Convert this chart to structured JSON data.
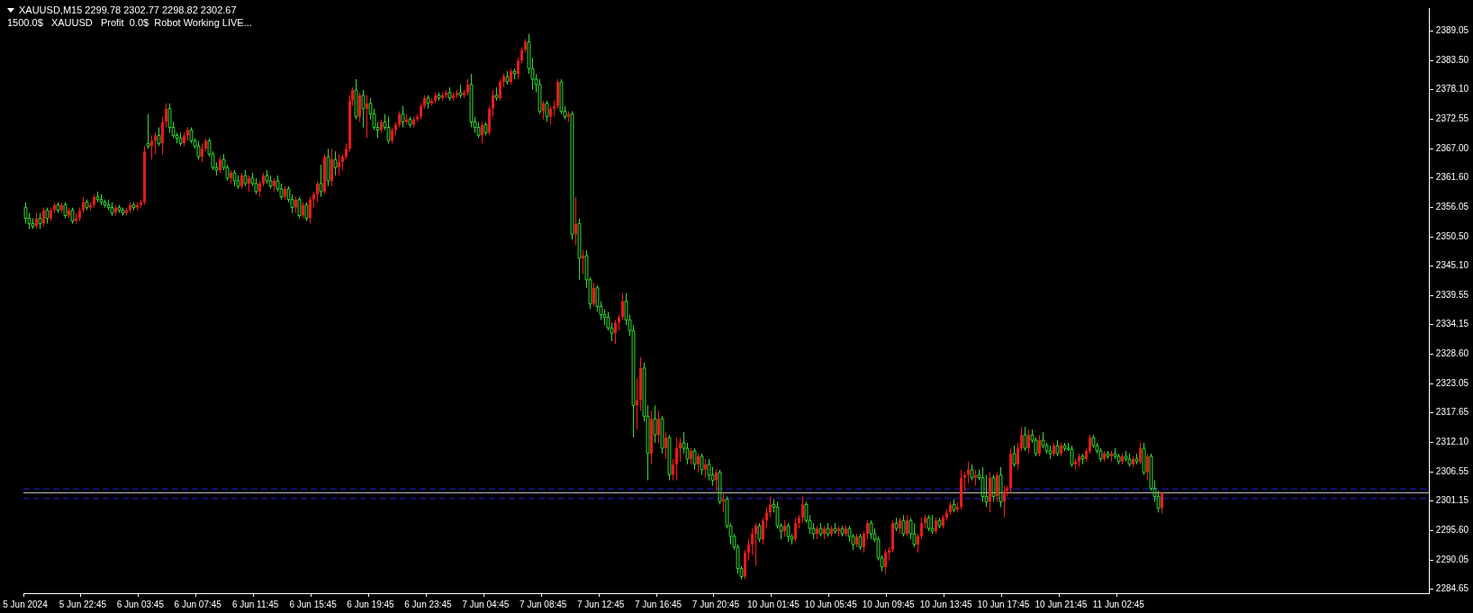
{
  "chart_data": {
    "type": "candlestick",
    "title": "XAUUSD,M15 2299.78 2302.77 2298.82 2302.67",
    "subtitle": "1500.0$   XAUUSD   Profit  0.0$  Robot Working LIVE...",
    "categories": [
      "5 Jun 2024",
      null,
      null,
      null,
      null,
      null,
      null,
      null,
      null,
      null,
      null,
      null,
      null,
      null,
      null,
      null,
      "5 Jun 22:45",
      null,
      null,
      null,
      null,
      null,
      null,
      null,
      null,
      null,
      null,
      null,
      null,
      null,
      null,
      null,
      "6 Jun 03:45",
      null,
      null,
      null,
      null,
      null,
      null,
      null,
      null,
      null,
      null,
      null,
      null,
      null,
      null,
      null,
      "6 Jun 07:45",
      null,
      null,
      null,
      null,
      null,
      null,
      null,
      null,
      null,
      null,
      null,
      null,
      null,
      null,
      null,
      "6 Jun 11:45",
      null,
      null,
      null,
      null,
      null,
      null,
      null,
      null,
      null,
      null,
      null,
      null,
      null,
      null,
      null,
      "6 Jun 15:45",
      null,
      null,
      null,
      null,
      null,
      null,
      null,
      null,
      null,
      null,
      null,
      null,
      null,
      null,
      null,
      "6 Jun 19:45",
      null,
      null,
      null,
      null,
      null,
      null,
      null,
      null,
      null,
      null,
      null,
      null,
      null,
      null,
      null,
      "6 Jun 23:45",
      null,
      null,
      null,
      null,
      null,
      null,
      null,
      null,
      null,
      null,
      null,
      null,
      null,
      null,
      null,
      "7 Jun 04:45",
      null,
      null,
      null,
      null,
      null,
      null,
      null,
      null,
      null,
      null,
      null,
      null,
      null,
      null,
      null,
      "7 Jun 08:45",
      null,
      null,
      null,
      null,
      null,
      null,
      null,
      null,
      null,
      null,
      null,
      null,
      null,
      null,
      null,
      "7 Jun 12:45",
      null,
      null,
      null,
      null,
      null,
      null,
      null,
      null,
      null,
      null,
      null,
      null,
      null,
      null,
      null,
      "7 Jun 16:45",
      null,
      null,
      null,
      null,
      null,
      null,
      null,
      null,
      null,
      null,
      null,
      null,
      null,
      null,
      null,
      "7 Jun 20:45",
      null,
      null,
      null,
      null,
      null,
      null,
      null,
      null,
      null,
      null,
      null,
      null,
      null,
      null,
      null,
      "10 Jun 01:45",
      null,
      null,
      null,
      null,
      null,
      null,
      null,
      null,
      null,
      null,
      null,
      null,
      null,
      null,
      null,
      "10 Jun 05:45",
      null,
      null,
      null,
      null,
      null,
      null,
      null,
      null,
      null,
      null,
      null,
      null,
      null,
      null,
      null,
      "10 Jun 09:45",
      null,
      null,
      null,
      null,
      null,
      null,
      null,
      null,
      null,
      null,
      null,
      null,
      null,
      null,
      null,
      "10 Jun 13:45",
      null,
      null,
      null,
      null,
      null,
      null,
      null,
      null,
      null,
      null,
      null,
      null,
      null,
      null,
      null,
      "10 Jun 17:45",
      null,
      null,
      null,
      null,
      null,
      null,
      null,
      null,
      null,
      null,
      null,
      null,
      null,
      null,
      null,
      "10 Jun 21:45",
      null,
      null,
      null,
      null,
      null,
      null,
      null,
      null,
      null,
      null,
      null,
      null,
      null,
      null,
      null,
      "11 Jun 02:45",
      null,
      null,
      null,
      null,
      null,
      null,
      null,
      null,
      null,
      null,
      null,
      null,
      null,
      null,
      null,
      null,
      null,
      null,
      null,
      null,
      null,
      null,
      null,
      null,
      null,
      null,
      null,
      null,
      null,
      null,
      null,
      null,
      null,
      null,
      null,
      null,
      null,
      null,
      null,
      null,
      null,
      null,
      null,
      null,
      null,
      null,
      null,
      null,
      null,
      null,
      null,
      null,
      null,
      null,
      null,
      null,
      null,
      null,
      null,
      null,
      null,
      null,
      null,
      null,
      null,
      null,
      null,
      null,
      null,
      null,
      null,
      null,
      null,
      null,
      null,
      null,
      null,
      null,
      null,
      null,
      null,
      null,
      null,
      null,
      null,
      null
    ],
    "ohlc": [
      [
        2356,
        2357,
        2353,
        2354
      ],
      [
        2354,
        2355,
        2352,
        2353
      ],
      [
        2353,
        2354,
        2352,
        2352.5
      ],
      [
        2352.5,
        2355,
        2352,
        2354
      ],
      [
        2354,
        2355,
        2352,
        2353
      ],
      [
        2353,
        2356,
        2352.5,
        2355.5
      ],
      [
        2355.5,
        2356,
        2353,
        2354
      ],
      [
        2354,
        2356,
        2353.5,
        2355.5
      ],
      [
        2355.5,
        2357,
        2355,
        2356.5
      ],
      [
        2356.5,
        2357,
        2355,
        2355.5
      ],
      [
        2355.5,
        2357,
        2355,
        2356.5
      ],
      [
        2356.5,
        2357,
        2354,
        2354.5
      ],
      [
        2354.5,
        2356,
        2354,
        2355.5
      ],
      [
        2355.5,
        2356,
        2353,
        2353.5
      ],
      [
        2353.5,
        2355,
        2353,
        2354
      ],
      [
        2354,
        2356,
        2353.5,
        2355.5
      ],
      [
        2355.5,
        2358,
        2355,
        2357
      ],
      [
        2357,
        2357.5,
        2355.5,
        2356
      ],
      [
        2356,
        2357,
        2355.5,
        2356.5
      ],
      [
        2356.5,
        2358.5,
        2356,
        2358
      ],
      [
        2358,
        2359,
        2357,
        2357.5
      ],
      [
        2357.5,
        2358.5,
        2356.5,
        2357
      ],
      [
        2357,
        2357.5,
        2356,
        2356.5
      ],
      [
        2356.5,
        2357.5,
        2355.5,
        2356
      ],
      [
        2356,
        2357,
        2354.5,
        2355
      ],
      [
        2355,
        2356.5,
        2354.5,
        2356
      ],
      [
        2356,
        2356.5,
        2355,
        2355.5
      ],
      [
        2355.5,
        2356,
        2354.5,
        2355
      ],
      [
        2355,
        2356,
        2354.5,
        2355.5
      ],
      [
        2355.5,
        2357,
        2355,
        2356.5
      ],
      [
        2356.5,
        2357,
        2355.5,
        2356
      ],
      [
        2356,
        2357,
        2355.5,
        2356.5
      ],
      [
        2356.5,
        2357.5,
        2356,
        2357
      ],
      [
        2357,
        2367.5,
        2356.5,
        2366.5
      ],
      [
        2368,
        2373.5,
        2367,
        2367.5
      ],
      [
        2367.5,
        2369.5,
        2365,
        2368.5
      ],
      [
        2368.5,
        2370,
        2366,
        2369.5
      ],
      [
        2369.5,
        2371,
        2367.5,
        2368
      ],
      [
        2368,
        2373,
        2366,
        2372
      ],
      [
        2372,
        2375.5,
        2371,
        2374.5
      ],
      [
        2374.5,
        2375.5,
        2370,
        2371
      ],
      [
        2371,
        2372,
        2369,
        2369.5
      ],
      [
        2369.5,
        2370,
        2368,
        2369
      ],
      [
        2369,
        2370,
        2367.5,
        2368
      ],
      [
        2368,
        2370,
        2367.5,
        2369.5
      ],
      [
        2369.5,
        2371,
        2368.5,
        2370.5
      ],
      [
        2370.5,
        2371,
        2368,
        2368.5
      ],
      [
        2368.5,
        2369,
        2367,
        2367.5
      ],
      [
        2367.5,
        2368.5,
        2365,
        2365.5
      ],
      [
        2365.5,
        2368,
        2364.5,
        2367
      ],
      [
        2367,
        2369,
        2366.5,
        2368.5
      ],
      [
        2368.5,
        2369,
        2365.5,
        2366
      ],
      [
        2366,
        2366.5,
        2363,
        2363.5
      ],
      [
        2363.5,
        2364.5,
        2362,
        2363
      ],
      [
        2363,
        2365.5,
        2362.5,
        2365
      ],
      [
        2365,
        2366,
        2363,
        2363.5
      ],
      [
        2363.5,
        2364,
        2361,
        2361.5
      ],
      [
        2361.5,
        2363,
        2360.5,
        2362.5
      ],
      [
        2362.5,
        2363,
        2360,
        2361
      ],
      [
        2361,
        2362,
        2359.5,
        2360
      ],
      [
        2360,
        2362.5,
        2359.5,
        2362
      ],
      [
        2362,
        2363,
        2360,
        2360.5
      ],
      [
        2360.5,
        2362,
        2359,
        2361.5
      ],
      [
        2361.5,
        2362.5,
        2360,
        2360.5
      ],
      [
        2360.5,
        2361.5,
        2358.5,
        2359
      ],
      [
        2359,
        2361,
        2358,
        2360.5
      ],
      [
        2360.5,
        2362.5,
        2360,
        2362
      ],
      [
        2362,
        2363,
        2360.5,
        2361
      ],
      [
        2361,
        2362,
        2359.5,
        2360
      ],
      [
        2360,
        2361.5,
        2359,
        2361
      ],
      [
        2361,
        2362,
        2359,
        2359.5
      ],
      [
        2359.5,
        2360.5,
        2357.5,
        2358
      ],
      [
        2358,
        2360,
        2357.5,
        2359.5
      ],
      [
        2359.5,
        2360,
        2357,
        2357.5
      ],
      [
        2357.5,
        2358.5,
        2355,
        2356
      ],
      [
        2356,
        2358,
        2355,
        2357.5
      ],
      [
        2357.5,
        2358,
        2354,
        2354.5
      ],
      [
        2354.5,
        2357,
        2354,
        2356.5
      ],
      [
        2356.5,
        2357,
        2353.5,
        2354
      ],
      [
        2354,
        2358,
        2353,
        2357.5
      ],
      [
        2357.5,
        2359,
        2356,
        2358.5
      ],
      [
        2358.5,
        2361,
        2357,
        2360.5
      ],
      [
        2360.5,
        2364,
        2358,
        2359
      ],
      [
        2359,
        2366,
        2358.5,
        2365.5
      ],
      [
        2365.5,
        2367,
        2360,
        2361
      ],
      [
        2361,
        2367,
        2360,
        2365
      ],
      [
        2365,
        2366.5,
        2362,
        2363.5
      ],
      [
        2363.5,
        2366,
        2362,
        2364.5
      ],
      [
        2364.5,
        2366,
        2363,
        2365.5
      ],
      [
        2365.5,
        2368,
        2365,
        2367
      ],
      [
        2367,
        2377,
        2366.5,
        2376
      ],
      [
        2376,
        2378.5,
        2375,
        2378
      ],
      [
        2378,
        2380,
        2372.5,
        2373
      ],
      [
        2373,
        2377.5,
        2372,
        2377
      ],
      [
        2377,
        2378,
        2371,
        2374.5
      ],
      [
        2374.5,
        2377,
        2369,
        2375.5
      ],
      [
        2375.5,
        2376.5,
        2372.5,
        2373.5
      ],
      [
        2373.5,
        2374.5,
        2370.5,
        2371
      ],
      [
        2371,
        2372,
        2369,
        2370.5
      ],
      [
        2370.5,
        2372.5,
        2370,
        2372
      ],
      [
        2372,
        2373.5,
        2370.5,
        2371
      ],
      [
        2371,
        2373,
        2368,
        2368.5
      ],
      [
        2368.5,
        2371,
        2368,
        2370.5
      ],
      [
        2370.5,
        2372,
        2369.5,
        2371.5
      ],
      [
        2371.5,
        2374,
        2371,
        2373.5
      ],
      [
        2373.5,
        2375,
        2371,
        2372
      ],
      [
        2372,
        2373.5,
        2371.5,
        2372.5
      ],
      [
        2372.5,
        2373,
        2371,
        2371.5
      ],
      [
        2371.5,
        2373,
        2371,
        2372.5
      ],
      [
        2372.5,
        2373.5,
        2372,
        2373
      ],
      [
        2373,
        2375.5,
        2372.5,
        2375
      ],
      [
        2375,
        2377,
        2374.5,
        2376.5
      ],
      [
        2376.5,
        2377,
        2374.5,
        2375.5
      ],
      [
        2375.5,
        2376.5,
        2375,
        2376
      ],
      [
        2376,
        2377.5,
        2375.5,
        2377
      ],
      [
        2377,
        2377.5,
        2376,
        2376.5
      ],
      [
        2376.5,
        2377.5,
        2376,
        2377
      ],
      [
        2377,
        2378,
        2376.5,
        2377.5
      ],
      [
        2377.5,
        2378.5,
        2376,
        2376.5
      ],
      [
        2376.5,
        2377.5,
        2376,
        2377
      ],
      [
        2377,
        2378,
        2376.5,
        2377.5
      ],
      [
        2377.5,
        2379,
        2376.5,
        2377
      ],
      [
        2377,
        2378,
        2376.5,
        2377.5
      ],
      [
        2377.5,
        2380,
        2377,
        2379
      ],
      [
        2379,
        2381,
        2371,
        2372
      ],
      [
        2372,
        2373,
        2370,
        2371
      ],
      [
        2371,
        2372,
        2369,
        2369.5
      ],
      [
        2369.5,
        2372,
        2368,
        2371.5
      ],
      [
        2371.5,
        2372,
        2369.5,
        2370
      ],
      [
        2370,
        2375,
        2369.5,
        2374.5
      ],
      [
        2374.5,
        2378,
        2373,
        2377
      ],
      [
        2377,
        2378.5,
        2376,
        2376.5
      ],
      [
        2376.5,
        2380,
        2376,
        2379.5
      ],
      [
        2379.5,
        2381,
        2378.5,
        2380.5
      ],
      [
        2380.5,
        2381.5,
        2379,
        2379.5
      ],
      [
        2379.5,
        2382,
        2379,
        2381.5
      ],
      [
        2381.5,
        2382,
        2380,
        2381
      ],
      [
        2381,
        2384,
        2380,
        2383.5
      ],
      [
        2383.5,
        2386,
        2383,
        2385.5
      ],
      [
        2385.5,
        2387.5,
        2385,
        2387
      ],
      [
        2387,
        2388.5,
        2381,
        2382
      ],
      [
        2382,
        2384,
        2378,
        2380
      ],
      [
        2380,
        2381,
        2377.5,
        2379
      ],
      [
        2379,
        2380,
        2373.5,
        2374
      ],
      [
        2374,
        2376,
        2372.5,
        2375.5
      ],
      [
        2375.5,
        2376,
        2372,
        2373
      ],
      [
        2373,
        2375,
        2371.5,
        2374.5
      ],
      [
        2374.5,
        2376,
        2373,
        2375
      ],
      [
        2375,
        2380,
        2374.5,
        2379.5
      ],
      [
        2379.5,
        2380,
        2373.5,
        2374
      ],
      [
        2374,
        2375,
        2372.5,
        2373
      ],
      [
        2373,
        2374,
        2372,
        2373.5
      ],
      [
        2373.5,
        2374,
        2350,
        2351
      ],
      [
        2351,
        2358,
        2349,
        2353
      ],
      [
        2353,
        2354,
        2342.5,
        2346.5
      ],
      [
        2346.5,
        2348,
        2343.5,
        2347
      ],
      [
        2347,
        2348,
        2341,
        2342.5
      ],
      [
        2342.5,
        2343,
        2337,
        2338
      ],
      [
        2338,
        2342,
        2337.5,
        2341
      ],
      [
        2341,
        2341.5,
        2336.5,
        2337.5
      ],
      [
        2337.5,
        2338.5,
        2335,
        2336
      ],
      [
        2336,
        2337,
        2334,
        2335.5
      ],
      [
        2335.5,
        2336.5,
        2333,
        2333.5
      ],
      [
        2333.5,
        2334.5,
        2331,
        2332.5
      ],
      [
        2332.5,
        2335,
        2330.5,
        2334.5
      ],
      [
        2334.5,
        2336,
        2333,
        2335.5
      ],
      [
        2335.5,
        2340,
        2335,
        2338.5
      ],
      [
        2338.5,
        2340,
        2334,
        2335
      ],
      [
        2335,
        2336,
        2332,
        2333
      ],
      [
        2333,
        2334,
        2313,
        2319
      ],
      [
        2319,
        2324,
        2314.5,
        2320
      ],
      [
        2320,
        2328,
        2318,
        2326
      ],
      [
        2326,
        2327,
        2316,
        2317
      ],
      [
        2317,
        2319,
        2305,
        2310
      ],
      [
        2310,
        2318,
        2308,
        2316.5
      ],
      [
        2316.5,
        2319,
        2312,
        2313.5
      ],
      [
        2313.5,
        2318,
        2312,
        2316.5
      ],
      [
        2316.5,
        2317,
        2310,
        2311
      ],
      [
        2311,
        2314,
        2309,
        2313
      ],
      [
        2313,
        2313.5,
        2305,
        2306
      ],
      [
        2306,
        2309,
        2305,
        2308
      ],
      [
        2308,
        2313,
        2305,
        2311
      ],
      [
        2311,
        2313,
        2308.5,
        2312
      ],
      [
        2312,
        2314,
        2310,
        2311
      ],
      [
        2311,
        2312,
        2308,
        2309
      ],
      [
        2309,
        2311,
        2308,
        2310.5
      ],
      [
        2310.5,
        2311,
        2307,
        2308
      ],
      [
        2308,
        2310,
        2306.5,
        2309.5
      ],
      [
        2309.5,
        2310,
        2306,
        2307
      ],
      [
        2307,
        2309,
        2305.5,
        2308
      ],
      [
        2308,
        2309,
        2305,
        2306
      ],
      [
        2306,
        2307.5,
        2304,
        2305
      ],
      [
        2305,
        2307,
        2303,
        2306.5
      ],
      [
        2306.5,
        2307,
        2300.5,
        2301
      ],
      [
        2301,
        2302.5,
        2299,
        2301.5
      ],
      [
        2301.5,
        2302,
        2296,
        2296.5
      ],
      [
        2296.5,
        2297,
        2293,
        2294.5
      ],
      [
        2294.5,
        2295,
        2292,
        2292.5
      ],
      [
        2292.5,
        2293,
        2287.5,
        2288.5
      ],
      [
        2288.5,
        2289,
        2286.5,
        2287
      ],
      [
        2287,
        2292,
        2286.5,
        2291.5
      ],
      [
        2291.5,
        2294,
        2290,
        2293
      ],
      [
        2293,
        2296,
        2291,
        2295
      ],
      [
        2295,
        2297,
        2289,
        2296.5
      ],
      [
        2296.5,
        2297,
        2293.5,
        2294
      ],
      [
        2294,
        2298,
        2293,
        2297.5
      ],
      [
        2297.5,
        2300,
        2296,
        2299
      ],
      [
        2299,
        2302,
        2298,
        2300.5
      ],
      [
        2300.5,
        2301.5,
        2299,
        2300
      ],
      [
        2300,
        2301,
        2296,
        2296.5
      ],
      [
        2296.5,
        2297,
        2294,
        2295.5
      ],
      [
        2295.5,
        2297.5,
        2294.5,
        2296.5
      ],
      [
        2296.5,
        2297,
        2293.5,
        2294.5
      ],
      [
        2294.5,
        2295,
        2293,
        2294
      ],
      [
        2294,
        2298,
        2293.5,
        2297
      ],
      [
        2297,
        2298.5,
        2296,
        2298
      ],
      [
        2298,
        2302,
        2297,
        2300.5
      ],
      [
        2300.5,
        2301,
        2297,
        2297.5
      ],
      [
        2297.5,
        2298.5,
        2295,
        2296
      ],
      [
        2296,
        2297,
        2294,
        2295
      ],
      [
        2295,
        2296.5,
        2294,
        2296
      ],
      [
        2296,
        2297,
        2294.5,
        2295
      ],
      [
        2295,
        2296.5,
        2294,
        2296
      ],
      [
        2296,
        2297,
        2294.5,
        2295
      ],
      [
        2295,
        2296.5,
        2294.5,
        2296
      ],
      [
        2296,
        2297,
        2295,
        2295.5
      ],
      [
        2295.5,
        2296.5,
        2294.5,
        2296
      ],
      [
        2296,
        2296.5,
        2294.5,
        2295
      ],
      [
        2295,
        2296.5,
        2294.5,
        2296
      ],
      [
        2296,
        2296.5,
        2293.5,
        2294.5
      ],
      [
        2294.5,
        2295,
        2292,
        2293
      ],
      [
        2293,
        2295,
        2292.5,
        2294.5
      ],
      [
        2294.5,
        2295,
        2292,
        2292.5
      ],
      [
        2292.5,
        2295.5,
        2291.5,
        2295
      ],
      [
        2295,
        2297.5,
        2294,
        2297
      ],
      [
        2297,
        2297.5,
        2294,
        2295
      ],
      [
        2295,
        2296,
        2293.5,
        2294
      ],
      [
        2294,
        2294.5,
        2290,
        2290.5
      ],
      [
        2290.5,
        2291,
        2288,
        2288.8
      ],
      [
        2288.8,
        2292,
        2287.5,
        2291.5
      ],
      [
        2291.5,
        2292.5,
        2290,
        2292
      ],
      [
        2292,
        2297.5,
        2291.5,
        2297
      ],
      [
        2297,
        2298,
        2295.5,
        2296
      ],
      [
        2296,
        2298,
        2295,
        2297.5
      ],
      [
        2297.5,
        2298.5,
        2294.5,
        2295
      ],
      [
        2295,
        2298.5,
        2294.5,
        2297.5
      ],
      [
        2297.5,
        2298,
        2294,
        2295
      ],
      [
        2295,
        2297,
        2292.5,
        2293
      ],
      [
        2293,
        2295,
        2291.5,
        2294.5
      ],
      [
        2294.5,
        2298,
        2294,
        2297
      ],
      [
        2297,
        2298.5,
        2296,
        2298
      ],
      [
        2298,
        2298.5,
        2295.5,
        2296
      ],
      [
        2296,
        2298.5,
        2295,
        2295.5
      ],
      [
        2295.5,
        2298,
        2295,
        2297.5
      ],
      [
        2297.5,
        2298,
        2296,
        2296.5
      ],
      [
        2296.5,
        2298.5,
        2296,
        2298
      ],
      [
        2298,
        2299.5,
        2297.5,
        2299
      ],
      [
        2299,
        2301,
        2298.5,
        2300.5
      ],
      [
        2300.5,
        2301.5,
        2299,
        2299.5
      ],
      [
        2299.5,
        2301,
        2299,
        2300
      ],
      [
        2300,
        2307,
        2299.5,
        2305.5
      ],
      [
        2305.5,
        2306.5,
        2303,
        2306
      ],
      [
        2306,
        2308.5,
        2304.5,
        2307
      ],
      [
        2307,
        2308,
        2305,
        2305.5
      ],
      [
        2305.5,
        2307,
        2304,
        2306
      ],
      [
        2306,
        2307,
        2305,
        2305.5
      ],
      [
        2305.5,
        2307.5,
        2301,
        2302
      ],
      [
        2302,
        2306,
        2300,
        2301
      ],
      [
        2301,
        2306.5,
        2299,
        2305.5
      ],
      [
        2305.5,
        2306,
        2301,
        2302
      ],
      [
        2302,
        2306.5,
        2301,
        2306
      ],
      [
        2306,
        2307.5,
        2300,
        2301
      ],
      [
        2301,
        2304,
        2298,
        2303
      ],
      [
        2303,
        2304,
        2302,
        2303.5
      ],
      [
        2303.5,
        2311,
        2302.5,
        2310
      ],
      [
        2310,
        2311.5,
        2307.5,
        2308
      ],
      [
        2308,
        2312,
        2307,
        2311
      ],
      [
        2311,
        2315,
        2310.5,
        2313.5
      ],
      [
        2313.5,
        2315,
        2310.5,
        2311
      ],
      [
        2311,
        2314.5,
        2310,
        2313.5
      ],
      [
        2313.5,
        2314.5,
        2312,
        2312.5
      ],
      [
        2312.5,
        2313,
        2309.5,
        2310
      ],
      [
        2310,
        2313.5,
        2309.5,
        2312.5
      ],
      [
        2312.5,
        2314,
        2311,
        2311.5
      ],
      [
        2311.5,
        2312,
        2310,
        2310.5
      ],
      [
        2310.5,
        2311.5,
        2309,
        2310
      ],
      [
        2310,
        2312,
        2309.5,
        2311.5
      ],
      [
        2311.5,
        2312.5,
        2309.5,
        2310
      ],
      [
        2310,
        2312,
        2309.5,
        2311.5
      ],
      [
        2311.5,
        2312,
        2310.5,
        2311
      ],
      [
        2311,
        2312,
        2310.5,
        2310.8
      ],
      [
        2310.8,
        2311.5,
        2307.5,
        2308
      ],
      [
        2308,
        2309,
        2307,
        2308.5
      ],
      [
        2308.5,
        2310,
        2307.5,
        2309.5
      ],
      [
        2309.5,
        2310,
        2308,
        2309
      ],
      [
        2309,
        2311,
        2308.5,
        2310.5
      ],
      [
        2310.5,
        2313.5,
        2310,
        2313
      ],
      [
        2313,
        2313.5,
        2311,
        2311.5
      ],
      [
        2311.5,
        2312,
        2310,
        2310.5
      ],
      [
        2310.5,
        2311,
        2308.5,
        2309
      ],
      [
        2309,
        2310.5,
        2308.5,
        2310
      ],
      [
        2310,
        2310.5,
        2309,
        2309.5
      ],
      [
        2309.5,
        2310.5,
        2308.5,
        2310
      ],
      [
        2310,
        2311,
        2309,
        2309.5
      ],
      [
        2309.5,
        2310,
        2308,
        2308.5
      ],
      [
        2308.5,
        2310,
        2308,
        2309.5
      ],
      [
        2309.5,
        2310.5,
        2308.5,
        2309
      ],
      [
        2309,
        2310,
        2307.5,
        2308
      ],
      [
        2308,
        2309.5,
        2307.5,
        2309
      ],
      [
        2309,
        2310,
        2308,
        2308.5
      ],
      [
        2308.5,
        2312,
        2308,
        2311
      ],
      [
        2311,
        2312,
        2306,
        2306.5
      ],
      [
        2306.5,
        2310,
        2305,
        2309.5
      ],
      [
        2309.5,
        2310,
        2303,
        2303.5
      ],
      [
        2303.5,
        2305,
        2301,
        2302
      ],
      [
        2302,
        2303,
        2299,
        2299.78
      ],
      [
        2299.78,
        2302.77,
        2298.82,
        2302.67
      ],
      null,
      null,
      null,
      null,
      null,
      null,
      null,
      null,
      null,
      null,
      null,
      null,
      null,
      null,
      null,
      null,
      null,
      null,
      null,
      null,
      null,
      null,
      null,
      null,
      null,
      null,
      null,
      null,
      null,
      null,
      null,
      null,
      null,
      null,
      null,
      null,
      null,
      null,
      null,
      null,
      null,
      null,
      null,
      null,
      null,
      null,
      null,
      null,
      null,
      null,
      null,
      null,
      null,
      null,
      null,
      null,
      null,
      null,
      null,
      null,
      null,
      null,
      null,
      null,
      null,
      null,
      null,
      null,
      null,
      null,
      null,
      null,
      null,
      null
    ],
    "ylim": [
      2283.9,
      2393.3
    ],
    "yticks": [
      {
        "value": 2284.65,
        "label": "2284.65"
      },
      {
        "value": 2290.05,
        "label": "2290.05"
      },
      {
        "value": 2295.6,
        "label": "2295.60"
      },
      {
        "value": 2301.15,
        "label": "2301.15"
      },
      {
        "value": 2306.55,
        "label": "2306.55"
      },
      {
        "value": 2312.1,
        "label": "2312.10"
      },
      {
        "value": 2317.65,
        "label": "2317.65"
      },
      {
        "value": 2323.05,
        "label": "2323.05"
      },
      {
        "value": 2328.6,
        "label": "2328.60"
      },
      {
        "value": 2334.15,
        "label": "2334.15"
      },
      {
        "value": 2339.55,
        "label": "2339.55"
      },
      {
        "value": 2345.1,
        "label": "2345.10"
      },
      {
        "value": 2350.5,
        "label": "2350.50"
      },
      {
        "value": 2356.05,
        "label": "2356.05"
      },
      {
        "value": 2361.6,
        "label": "2361.60"
      },
      {
        "value": 2367,
        "label": "2367.00"
      },
      {
        "value": 2372.55,
        "label": "2372.55"
      },
      {
        "value": 2378.1,
        "label": "2378.10"
      },
      {
        "value": 2383.5,
        "label": "2383.50"
      },
      {
        "value": 2389.05,
        "label": "2389.05"
      }
    ],
    "grid": false,
    "ref_lines": [
      {
        "axis": "y",
        "value": 2302.67,
        "color": "#c0c0c0",
        "line_style": "solid"
      },
      {
        "axis": "y",
        "value": 2303.4,
        "color": "#2020e0",
        "line_style": "dashed"
      },
      {
        "axis": "y",
        "value": 2301.6,
        "color": "#2020e0",
        "line_style": "dashed"
      }
    ]
  }
}
